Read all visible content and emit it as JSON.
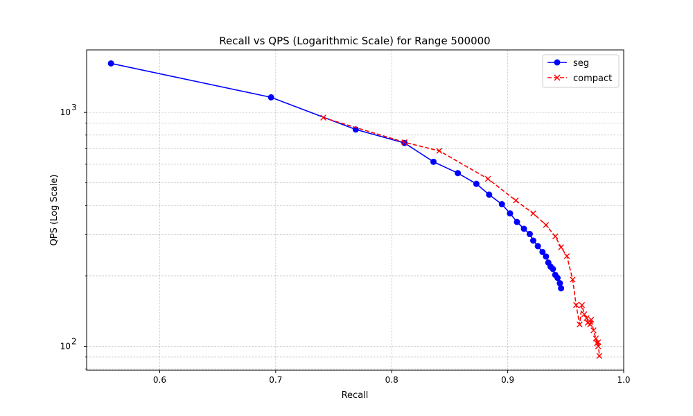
{
  "chart_data": {
    "type": "line",
    "title": "Recall vs QPS (Logarithmic Scale) for Range 500000",
    "xlabel": "Recall",
    "ylabel": "QPS (Log Scale)",
    "xlim": [
      0.537,
      1.0
    ],
    "ylim": [
      79,
      1850
    ],
    "yscale": "log",
    "grid": true,
    "legend_position": "top-right",
    "x_ticks": [
      {
        "value": 0.6,
        "label": "0.6"
      },
      {
        "value": 0.7,
        "label": "0.7"
      },
      {
        "value": 0.8,
        "label": "0.8"
      },
      {
        "value": 0.9,
        "label": "0.9"
      },
      {
        "value": 1.0,
        "label": "1.0"
      }
    ],
    "y_ticks": [
      {
        "value": 100,
        "base": "10",
        "exp": "2"
      },
      {
        "value": 1000,
        "base": "10",
        "exp": "3"
      }
    ],
    "series": [
      {
        "name": "seg",
        "color": "#0000ff",
        "marker": "circle",
        "line_style": "solid",
        "x": [
          0.558,
          0.696,
          0.769,
          0.811,
          0.836,
          0.857,
          0.873,
          0.884,
          0.895,
          0.902,
          0.908,
          0.914,
          0.919,
          0.922,
          0.926,
          0.93,
          0.933,
          0.935,
          0.937,
          0.939,
          0.941,
          0.943,
          0.945,
          0.946
        ],
        "y": [
          1620,
          1160,
          845,
          740,
          615,
          550,
          495,
          445,
          405,
          370,
          340,
          318,
          302,
          283,
          268,
          253,
          242,
          228,
          219,
          214,
          202,
          196,
          186,
          177
        ]
      },
      {
        "name": "compact",
        "color": "#ff0000",
        "marker": "x",
        "line_style": "dashed",
        "x": [
          0.741,
          0.811,
          0.841,
          0.883,
          0.907,
          0.922,
          0.933,
          0.941,
          0.946,
          0.951,
          0.956,
          0.959,
          0.962,
          0.964,
          0.966,
          0.968,
          0.969,
          0.971,
          0.972,
          0.974,
          0.976,
          0.977,
          0.978,
          0.978,
          0.979
        ],
        "y": [
          950,
          745,
          685,
          520,
          420,
          370,
          330,
          295,
          265,
          243,
          193,
          150,
          124,
          150,
          137,
          132,
          126,
          124,
          130,
          117,
          108,
          103,
          100,
          104,
          91
        ]
      }
    ]
  }
}
